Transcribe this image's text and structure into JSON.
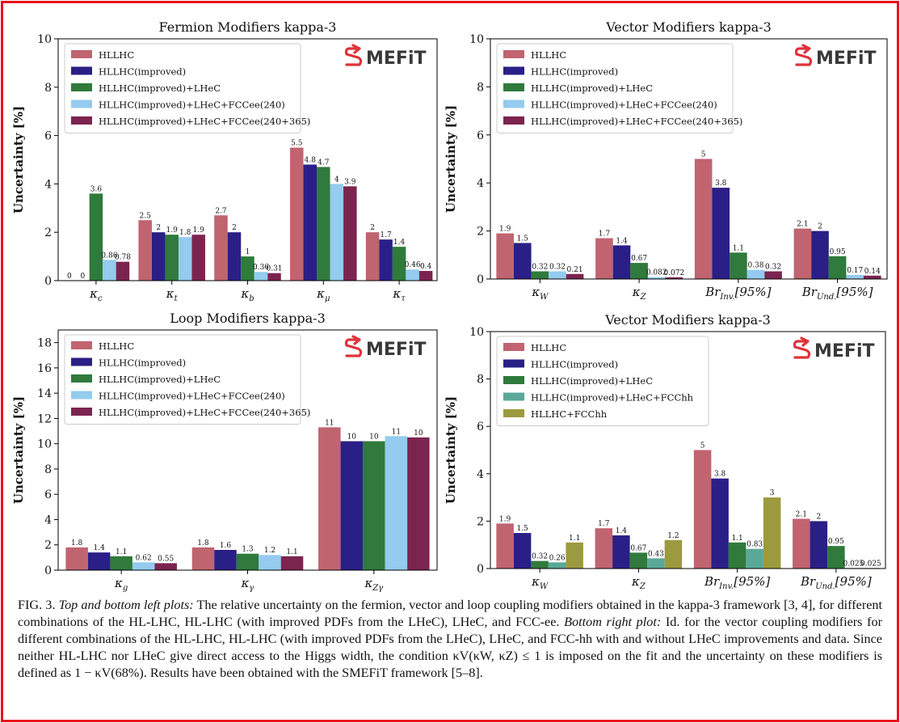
{
  "logo_text": "MEFiT",
  "chart_data": [
    {
      "type": "bar",
      "title": "Fermion Modifiers kappa-3",
      "y_label": "Uncertainty [%]",
      "categories": [
        "κc",
        "κt",
        "κb",
        "κμ",
        "κτ"
      ],
      "ylim": [
        0,
        10
      ],
      "yticks": [
        0,
        2,
        4,
        6,
        8,
        10
      ],
      "series": [
        {
          "name": "HLLHC",
          "color": "#c06470",
          "values": [
            0,
            2.5,
            2.7,
            5.5,
            2
          ]
        },
        {
          "name": "HLLHC(improved)",
          "color": "#2a1f86",
          "values": [
            0,
            2,
            2,
            4.8,
            1.7
          ]
        },
        {
          "name": "HLLHC(improved)+LHeC",
          "color": "#2f7a3c",
          "values": [
            3.6,
            1.9,
            1,
            4.7,
            1.4
          ]
        },
        {
          "name": "HLLHC(improved)+LHeC+FCCee(240)",
          "color": "#94cbee",
          "values": [
            0.86,
            1.8,
            0.36,
            4,
            0.46
          ]
        },
        {
          "name": "HLLHC(improved)+LHeC+FCCee(240+365)",
          "color": "#7c2450",
          "values": [
            0.78,
            1.9,
            0.31,
            3.9,
            0.4
          ]
        }
      ]
    },
    {
      "type": "bar",
      "title": "Vector Modifiers kappa-3",
      "y_label": "Uncertainty [%]",
      "categories": [
        "κW",
        "κZ",
        "BrInv.[95%]",
        "BrUnd.[95%]"
      ],
      "ylim": [
        0,
        10
      ],
      "yticks": [
        0,
        2,
        4,
        6,
        8,
        10
      ],
      "series": [
        {
          "name": "HLLHC",
          "color": "#c06470",
          "values": [
            1.9,
            1.7,
            5,
            2.1
          ]
        },
        {
          "name": "HLLHC(improved)",
          "color": "#2a1f86",
          "values": [
            1.5,
            1.4,
            3.8,
            2
          ]
        },
        {
          "name": "HLLHC(improved)+LHeC",
          "color": "#2f7a3c",
          "values": [
            0.32,
            0.67,
            1.1,
            0.95
          ]
        },
        {
          "name": "HLLHC(improved)+LHeC+FCCee(240)",
          "color": "#94cbee",
          "values": [
            0.32,
            0.082,
            0.38,
            0.17
          ]
        },
        {
          "name": "HLLHC(improved)+LHeC+FCCee(240+365)",
          "color": "#7c2450",
          "values": [
            0.21,
            0.072,
            0.32,
            0.14
          ]
        }
      ]
    },
    {
      "type": "bar",
      "title": "Loop Modifiers kappa-3",
      "y_label": "Uncertainty [%]",
      "categories": [
        "κg",
        "κγ",
        "κZγ"
      ],
      "ylim": [
        0,
        19
      ],
      "yticks": [
        0,
        2,
        4,
        6,
        8,
        10,
        12,
        14,
        16,
        18
      ],
      "series": [
        {
          "name": "HLLHC",
          "color": "#c06470",
          "values": [
            1.8,
            1.8,
            11.3
          ],
          "value_labels": [
            "1.8",
            "1.8",
            "11"
          ]
        },
        {
          "name": "HLLHC(improved)",
          "color": "#2a1f86",
          "values": [
            1.4,
            1.6,
            10.2
          ],
          "value_labels": [
            "1.4",
            "1.6",
            "10"
          ]
        },
        {
          "name": "HLLHC(improved)+LHeC",
          "color": "#2f7a3c",
          "values": [
            1.1,
            1.3,
            10.2
          ],
          "value_labels": [
            "1.1",
            "1.3",
            "10"
          ]
        },
        {
          "name": "HLLHC(improved)+LHeC+FCCee(240)",
          "color": "#94cbee",
          "values": [
            0.62,
            1.2,
            10.6
          ],
          "value_labels": [
            "0.62",
            "1.2",
            "11"
          ]
        },
        {
          "name": "HLLHC(improved)+LHeC+FCCee(240+365)",
          "color": "#7c2450",
          "values": [
            0.55,
            1.1,
            10.5
          ],
          "value_labels": [
            "0.55",
            "1.1",
            "10"
          ]
        }
      ]
    },
    {
      "type": "bar",
      "title": "Vector Modifiers kappa-3",
      "y_label": "Uncertainty [%]",
      "categories": [
        "κW",
        "κZ",
        "BrInv.[95%]",
        "BrUnd.[95%]"
      ],
      "ylim": [
        0,
        10
      ],
      "yticks": [
        0,
        2,
        4,
        6,
        8,
        10
      ],
      "series": [
        {
          "name": "HLLHC",
          "color": "#c06470",
          "values": [
            1.9,
            1.7,
            5,
            2.1
          ]
        },
        {
          "name": "HLLHC(improved)",
          "color": "#2a1f86",
          "values": [
            1.5,
            1.4,
            3.8,
            2
          ]
        },
        {
          "name": "HLLHC(improved)+LHeC",
          "color": "#2f7a3c",
          "values": [
            0.32,
            0.67,
            1.1,
            0.95
          ]
        },
        {
          "name": "HLLHC(improved)+LHeC+FCChh",
          "color": "#5aa898",
          "values": [
            0.26,
            0.43,
            0.83,
            0.025
          ]
        },
        {
          "name": "HLLHC+FCChh",
          "color": "#9c9a3e",
          "values": [
            1.1,
            1.2,
            3,
            0.025
          ]
        }
      ]
    }
  ],
  "caption": {
    "label": "FIG. 3.",
    "italic_1": "Top and bottom left plots:",
    "text_1": "The relative uncertainty on the fermion, vector and loop coupling modifiers obtained in the kappa-3 framework [3, 4], for different combinations of the HL-LHC, HL-LHC (with improved PDFs from the LHeC), LHeC, and FCC-ee.",
    "italic_2": "Bottom right plot:",
    "text_2": "Id. for the vector coupling modifiers for different combinations of the HL-LHC, HL-LHC (with improved PDFs from the LHeC), LHeC, and FCC-hh with and without LHeC improvements and data. Since neither HL-LHC nor LHeC give direct access to the Higgs width, the condition κV(κW, κZ) ≤ 1 is imposed on the fit and the uncertainty on these modifiers is defined as 1 − κV(68%). Results have been obtained with the SMEFiT framework [5–8]."
  }
}
